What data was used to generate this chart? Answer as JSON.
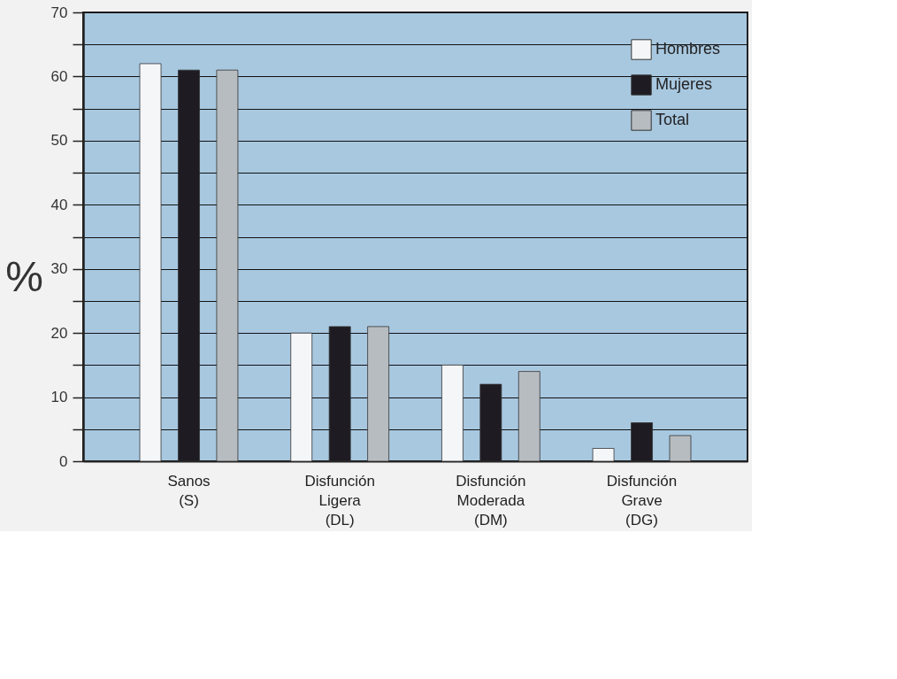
{
  "chart_data": {
    "type": "bar",
    "ylabel": "%",
    "categories": [
      "Sanos\n(S)",
      "Disfunción\nLigera\n(DL)",
      "Disfunción\nModerada\n(DM)",
      "Disfunción\nGrave\n(DG)"
    ],
    "series": [
      {
        "name": "Hombres",
        "color": "#f4f6f7",
        "values": [
          62,
          20,
          15,
          2
        ]
      },
      {
        "name": "Mujeres",
        "color": "#1e1c22",
        "values": [
          61,
          21,
          12,
          6
        ]
      },
      {
        "name": "Total",
        "color": "#b7bcc0",
        "values": [
          61,
          21,
          14,
          4
        ]
      }
    ],
    "ylim": [
      0,
      70
    ],
    "yticks": [
      0,
      {
        "value": 5,
        "label": null
      },
      10,
      {
        "value": 15,
        "label": null
      },
      20,
      {
        "value": 25,
        "label": null
      },
      30,
      {
        "value": 35,
        "label": null
      },
      40,
      {
        "value": 45,
        "label": null
      },
      50,
      {
        "value": 55,
        "label": null
      },
      60,
      {
        "value": 65,
        "label": null
      },
      70
    ],
    "grid": "y",
    "legend": "top right"
  }
}
